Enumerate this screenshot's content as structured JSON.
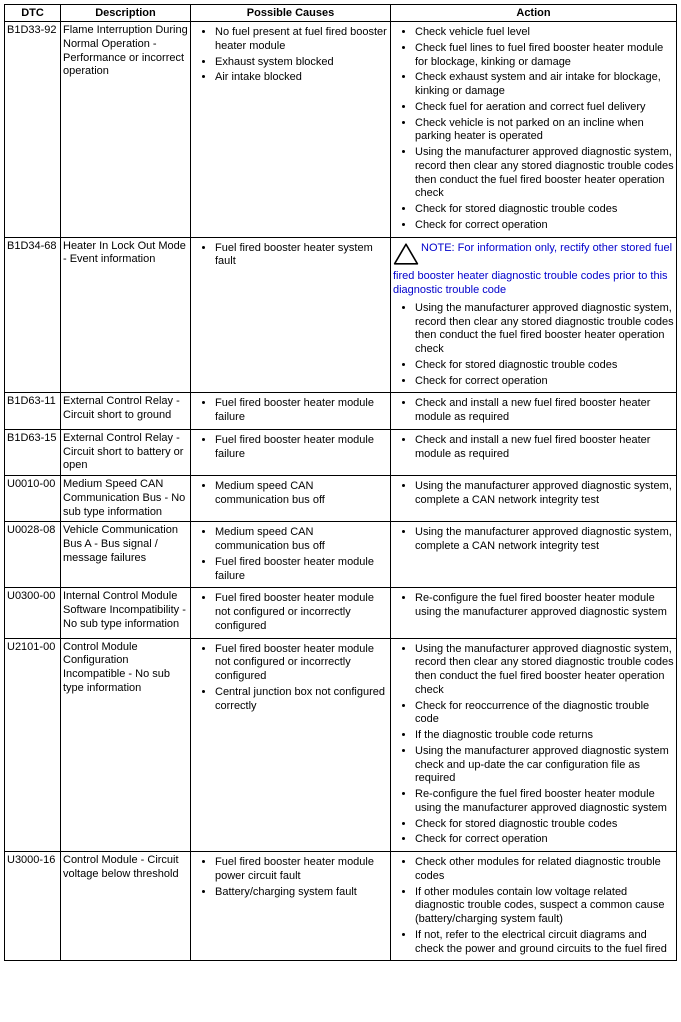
{
  "headers": {
    "dtc": "DTC",
    "description": "Description",
    "causes": "Possible Causes",
    "action": "Action"
  },
  "rows": [
    {
      "dtc": "B1D33-92",
      "description": "Flame Interruption During Normal Operation - Performance or incorrect operation",
      "causes": [
        "No fuel present at fuel fired booster heater module",
        "Exhaust system blocked",
        "Air intake blocked"
      ],
      "actions": [
        "Check vehicle fuel level",
        "Check fuel lines to fuel fired booster heater module for blockage, kinking or damage",
        "Check exhaust system and air intake for blockage, kinking or damage",
        "Check fuel for aeration and correct fuel delivery",
        "Check vehicle is not parked on an incline when parking heater is operated",
        "Using the manufacturer approved diagnostic system, record then clear any stored diagnostic trouble codes then conduct the fuel fired booster heater operation check",
        "Check for stored diagnostic trouble codes",
        "Check for correct operation"
      ]
    },
    {
      "dtc": "B1D34-68",
      "description": "Heater In Lock Out Mode - Event information",
      "causes": [
        "Fuel fired booster heater system fault"
      ],
      "note": "NOTE: For information only, rectify other stored fuel fired booster heater diagnostic trouble codes prior to this diagnostic trouble code",
      "actions": [
        "Using the manufacturer approved diagnostic system, record then clear any stored diagnostic trouble codes then conduct the fuel fired booster heater operation check",
        "Check for stored diagnostic trouble codes",
        "Check for correct operation"
      ]
    },
    {
      "dtc": "B1D63-11",
      "description": "External Control Relay - Circuit short to ground",
      "causes": [
        "Fuel fired booster heater module failure"
      ],
      "actions": [
        "Check and install a new fuel fired booster heater module as required"
      ]
    },
    {
      "dtc": "B1D63-15",
      "description": "External Control Relay - Circuit short to battery or open",
      "causes": [
        "Fuel fired booster heater module failure"
      ],
      "actions": [
        "Check and install a new fuel fired booster heater module as required"
      ]
    },
    {
      "dtc": "U0010-00",
      "description": "Medium Speed CAN Communication Bus - No sub type information",
      "causes": [
        "Medium speed CAN communication bus off"
      ],
      "actions": [
        "Using the manufacturer approved diagnostic system, complete a CAN network integrity test"
      ]
    },
    {
      "dtc": "U0028-08",
      "description": "Vehicle Communication Bus A - Bus signal / message failures",
      "causes": [
        "Medium speed CAN communication bus off",
        "Fuel fired booster heater module failure"
      ],
      "actions": [
        "Using the manufacturer approved diagnostic system, complete a CAN network integrity test"
      ]
    },
    {
      "dtc": "U0300-00",
      "description": "Internal Control Module Software Incompatibility - No sub type information",
      "causes": [
        "Fuel fired booster heater module not configured or incorrectly configured"
      ],
      "actions": [
        "Re-configure the fuel fired booster heater module using the manufacturer approved diagnostic system"
      ]
    },
    {
      "dtc": "U2101-00",
      "description": "Control Module Configuration Incompatible - No sub type information",
      "causes": [
        "Fuel fired booster heater module not configured or incorrectly configured",
        "Central junction box not configured correctly"
      ],
      "actions": [
        "Using the manufacturer approved diagnostic system, record then clear any stored diagnostic trouble codes then conduct the fuel fired booster heater operation check",
        "Check for reoccurrence of the diagnostic trouble code",
        "If the diagnostic trouble code returns",
        "Using the manufacturer approved diagnostic system check and up-date the car configuration file as required",
        "Re-configure the fuel fired booster heater module using the manufacturer approved diagnostic system",
        "Check for stored diagnostic trouble codes",
        "Check for correct operation"
      ]
    },
    {
      "dtc": "U3000-16",
      "description": "Control Module - Circuit voltage below threshold",
      "causes": [
        "Fuel fired booster heater module power circuit fault",
        "Battery/charging system fault"
      ],
      "actions": [
        "Check other modules for related diagnostic trouble codes",
        "If other modules contain low voltage related diagnostic trouble codes, suspect a common cause (battery/charging system fault)",
        "If not, refer to the electrical circuit diagrams and check the power and ground circuits to the fuel fired"
      ]
    }
  ]
}
